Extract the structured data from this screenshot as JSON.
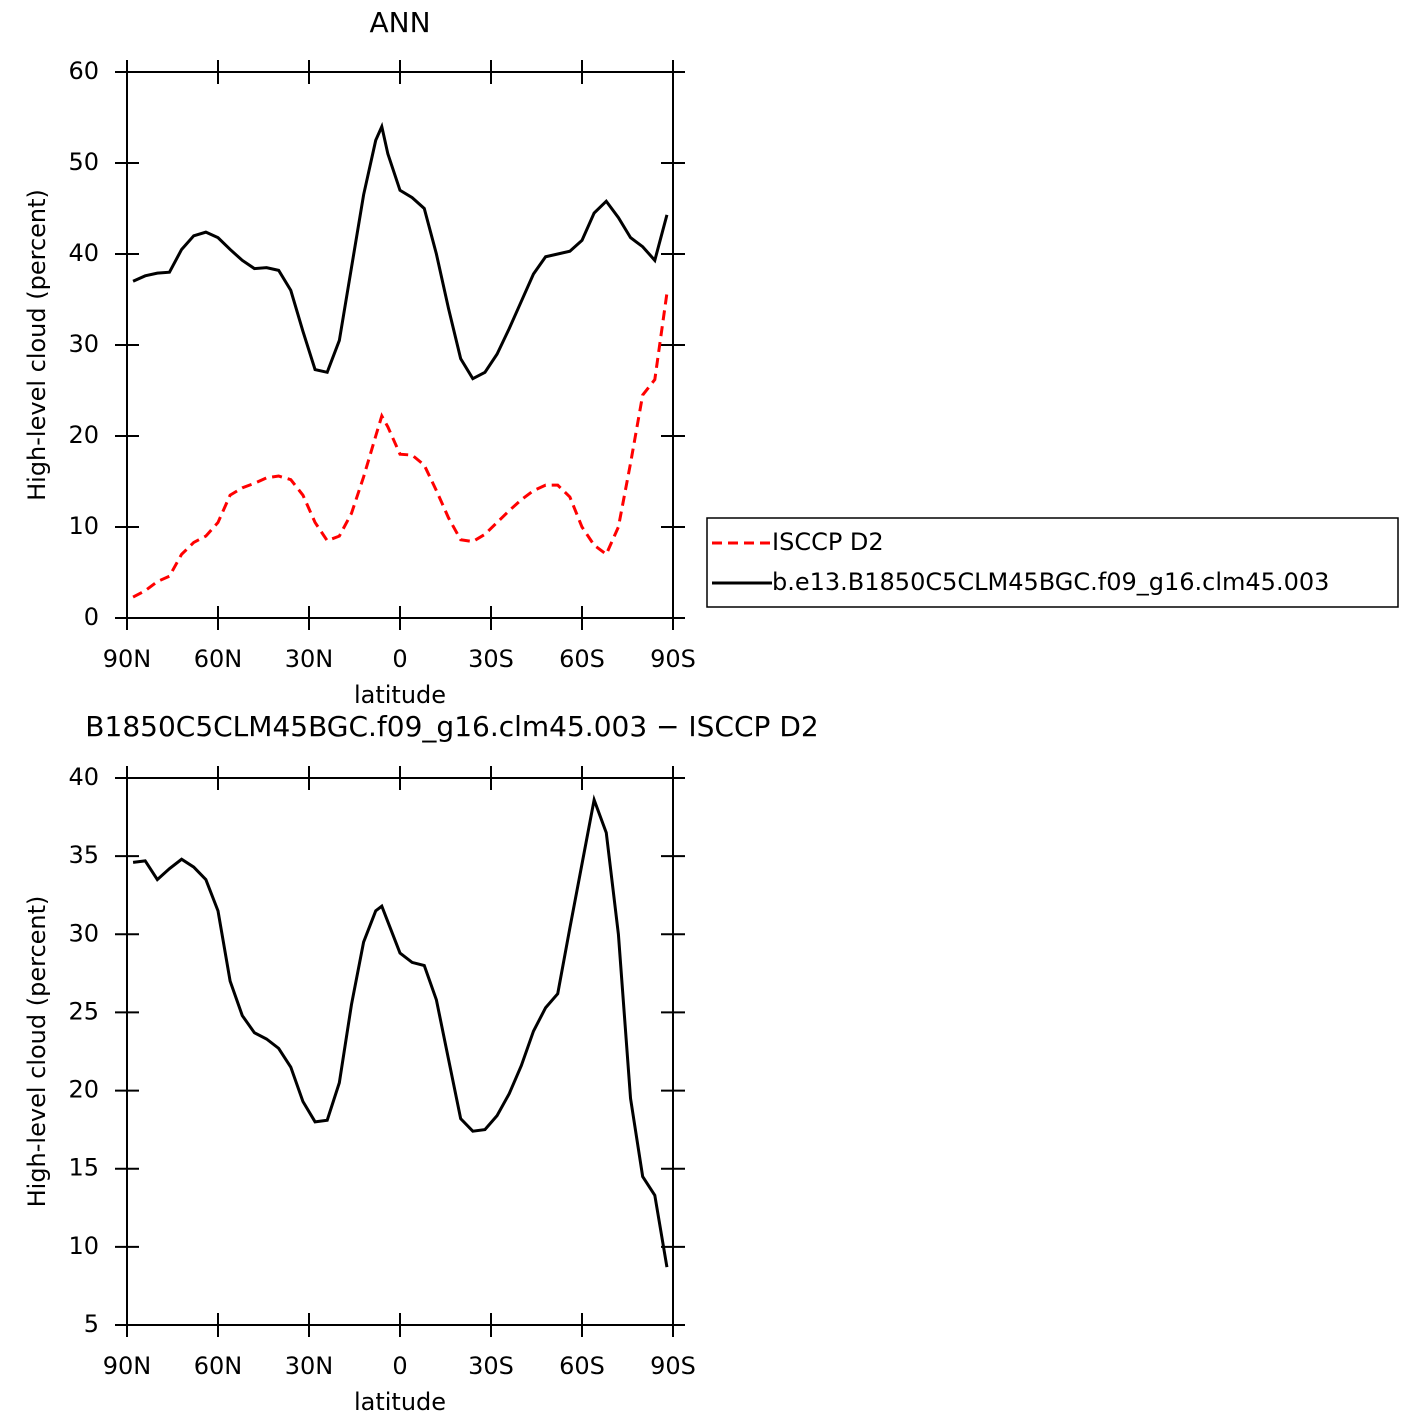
{
  "chart_data": [
    {
      "type": "line",
      "title": "ANN",
      "x_label": "latitude",
      "y_label": "High-level cloud (percent)",
      "x": [
        88,
        84,
        80,
        76,
        72,
        68,
        64,
        60,
        56,
        52,
        48,
        44,
        40,
        36,
        32,
        28,
        24,
        20,
        16,
        12,
        8,
        6,
        4,
        0,
        -4,
        -8,
        -12,
        -16,
        -20,
        -24,
        -28,
        -32,
        -36,
        -40,
        -44,
        -48,
        -52,
        -56,
        -60,
        -64,
        -68,
        -72,
        -76,
        -80,
        -84,
        -88
      ],
      "series": [
        {
          "name": "ISCCP D2",
          "color": "#ff0000",
          "style": "dashed",
          "values": [
            2.3,
            3.0,
            4.0,
            4.6,
            7.0,
            8.3,
            9.0,
            10.5,
            13.5,
            14.3,
            14.8,
            15.4,
            15.6,
            15.2,
            13.5,
            10.5,
            8.5,
            9.0,
            11.5,
            15.5,
            20.0,
            22.2,
            21.0,
            18.0,
            17.9,
            16.8,
            14.0,
            11.0,
            8.6,
            8.4,
            9.2,
            10.5,
            11.8,
            13.0,
            14.0,
            14.6,
            14.6,
            13.3,
            10.0,
            8.0,
            7.0,
            10.0,
            17.0,
            24.5,
            26.2,
            35.7
          ]
        },
        {
          "name": "b.e13.B1850C5CLM45BGC.f09_g16.clm45.003",
          "color": "#000000",
          "style": "solid",
          "values": [
            37.0,
            37.6,
            37.9,
            38.0,
            40.5,
            42.0,
            42.4,
            41.8,
            40.5,
            39.3,
            38.4,
            38.5,
            38.2,
            36.0,
            31.5,
            27.3,
            27.0,
            30.5,
            38.5,
            46.5,
            52.5,
            54.0,
            51.0,
            47.0,
            46.2,
            45.0,
            40.0,
            34.0,
            28.5,
            26.3,
            27.0,
            29.0,
            31.8,
            34.8,
            37.8,
            39.7,
            40.0,
            40.3,
            41.5,
            44.5,
            45.8,
            44.0,
            41.8,
            40.8,
            39.3,
            44.3
          ]
        }
      ],
      "xlim": [
        90,
        -90
      ],
      "xticks": [
        {
          "value": 90,
          "label": "90N"
        },
        {
          "value": 60,
          "label": "60N"
        },
        {
          "value": 30,
          "label": "30N"
        },
        0,
        {
          "value": -30,
          "label": "30S"
        },
        {
          "value": -60,
          "label": "60S"
        },
        {
          "value": -90,
          "label": "90S"
        }
      ],
      "ylim": [
        0,
        60
      ],
      "yticks": [
        0,
        10,
        20,
        30,
        40,
        50,
        60
      ],
      "legend": "right"
    },
    {
      "type": "line",
      "title": "B1850C5CLM45BGC.f09_g16.clm45.003 − ISCCP D2",
      "x_label": "latitude",
      "y_label": "High-level cloud (percent)",
      "x": [
        88,
        84,
        80,
        76,
        72,
        68,
        64,
        60,
        56,
        52,
        48,
        44,
        40,
        36,
        32,
        28,
        24,
        20,
        16,
        12,
        8,
        6,
        4,
        0,
        -4,
        -8,
        -12,
        -16,
        -20,
        -24,
        -28,
        -32,
        -36,
        -40,
        -44,
        -48,
        -52,
        -56,
        -60,
        -64,
        -68,
        -72,
        -76,
        -80,
        -84,
        -88
      ],
      "series": [
        {
          "color": "#000000",
          "style": "solid",
          "values": [
            34.6,
            34.7,
            33.5,
            34.2,
            34.8,
            34.3,
            33.5,
            31.5,
            27.0,
            24.8,
            23.7,
            23.3,
            22.7,
            21.5,
            19.3,
            18.0,
            18.1,
            20.5,
            25.5,
            29.5,
            31.5,
            31.8,
            30.8,
            28.8,
            28.2,
            28.0,
            25.8,
            22.0,
            18.2,
            17.4,
            17.5,
            18.4,
            19.8,
            21.6,
            23.8,
            25.3,
            26.2,
            30.4,
            34.5,
            38.6,
            36.5,
            30.0,
            19.5,
            14.5,
            13.3,
            8.7
          ]
        }
      ],
      "xlim": [
        90,
        -90
      ],
      "xticks": [
        {
          "value": 90,
          "label": "90N"
        },
        {
          "value": 60,
          "label": "60N"
        },
        {
          "value": 30,
          "label": "30N"
        },
        0,
        {
          "value": -30,
          "label": "30S"
        },
        {
          "value": -60,
          "label": "60S"
        },
        {
          "value": -90,
          "label": "90S"
        }
      ],
      "ylim": [
        5,
        40
      ],
      "yticks": [
        5,
        10,
        15,
        20,
        25,
        30,
        35,
        40
      ]
    }
  ]
}
